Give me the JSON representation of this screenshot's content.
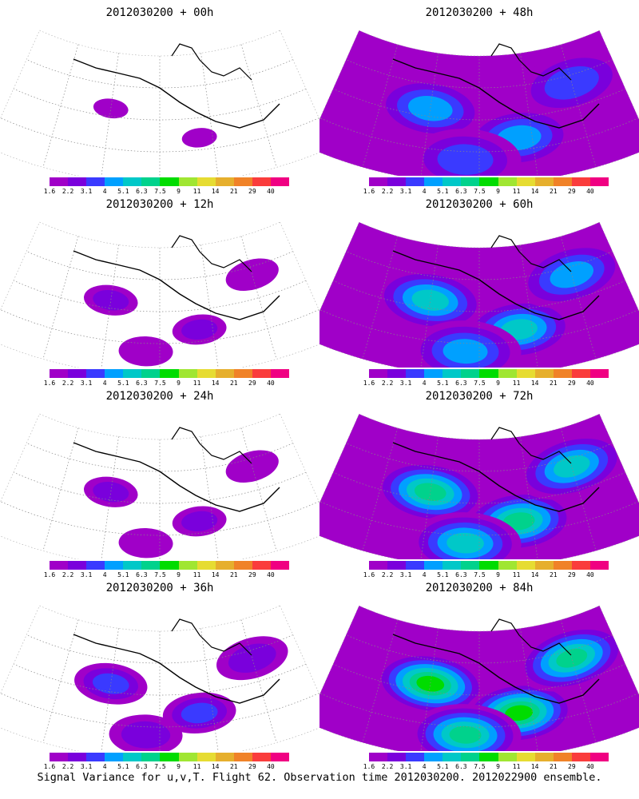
{
  "panels": [
    {
      "title": "2012030200 + 00h",
      "intensity": 0
    },
    {
      "title": "2012030200 + 48h",
      "intensity": 3
    },
    {
      "title": "2012030200 + 12h",
      "intensity": 1
    },
    {
      "title": "2012030200 + 60h",
      "intensity": 4
    },
    {
      "title": "2012030200 + 24h",
      "intensity": 1
    },
    {
      "title": "2012030200 + 72h",
      "intensity": 5
    },
    {
      "title": "2012030200 + 36h",
      "intensity": 2
    },
    {
      "title": "2012030200 + 84h",
      "intensity": 6
    }
  ],
  "colorbar": {
    "labels": [
      "1.6",
      "2.2",
      "3.1",
      "4",
      "5.1",
      "6.3",
      "7.5",
      "9",
      "11",
      "14",
      "21",
      "29",
      "40"
    ],
    "colors": [
      "#a000c8",
      "#7a00dc",
      "#3a3aff",
      "#00a0ff",
      "#00c8c8",
      "#00d28c",
      "#00dc00",
      "#a0e632",
      "#e6dc32",
      "#e6af2d",
      "#f08228",
      "#fa3c3c",
      "#f00082"
    ]
  },
  "footer": "Signal Variance for u,v,T. Flight 62. Observation time 2012030200. 2012022900 ensemble."
}
